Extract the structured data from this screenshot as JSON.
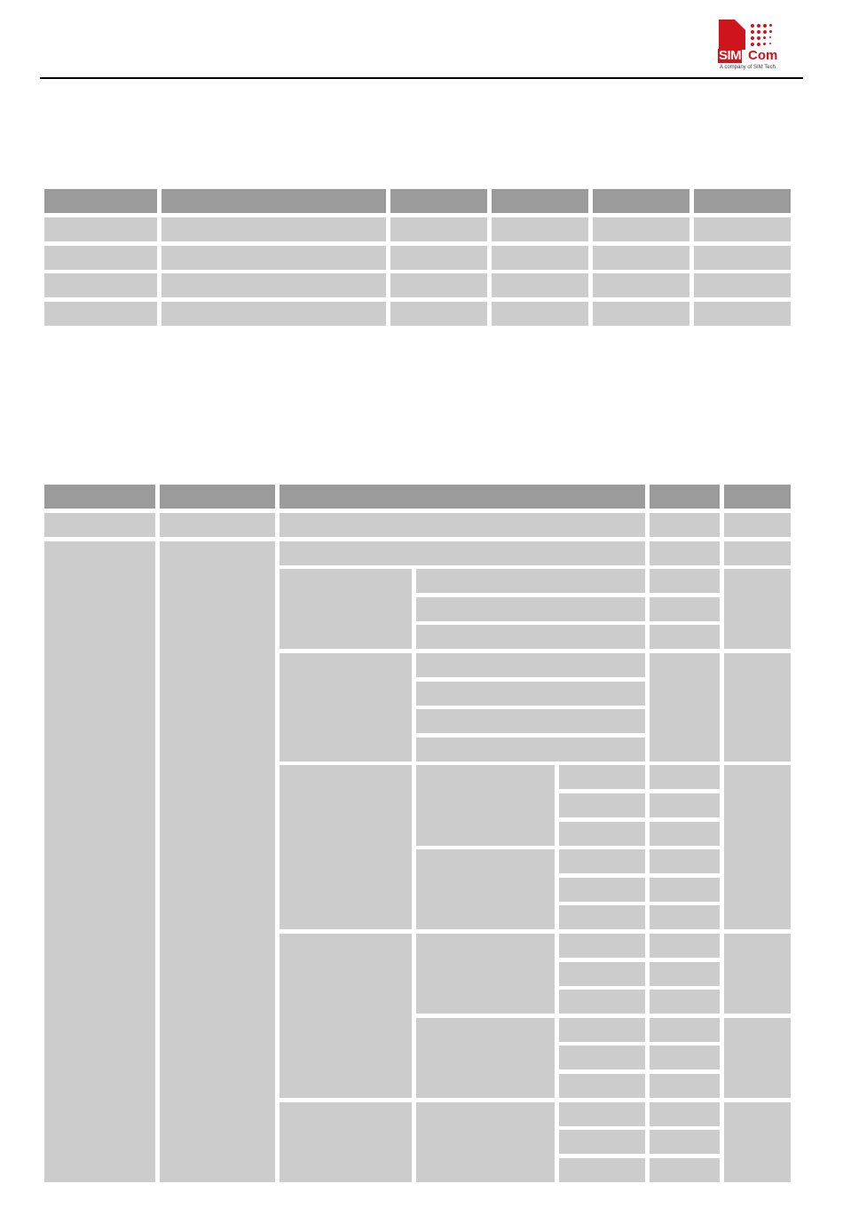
{
  "header": {
    "logo": {
      "brand_a": "SIM",
      "brand_b": "Com",
      "tagline": "A company of SIM Tech"
    }
  },
  "colors": {
    "brand_red": "#d0141b",
    "table_header": "#9b9b9b",
    "table_cell": "#cccccc"
  },
  "tables": [
    {
      "id": "table-1",
      "columns": 6,
      "body_rows": 4
    },
    {
      "id": "table-2",
      "columns": 5,
      "body_rows": 24
    }
  ]
}
